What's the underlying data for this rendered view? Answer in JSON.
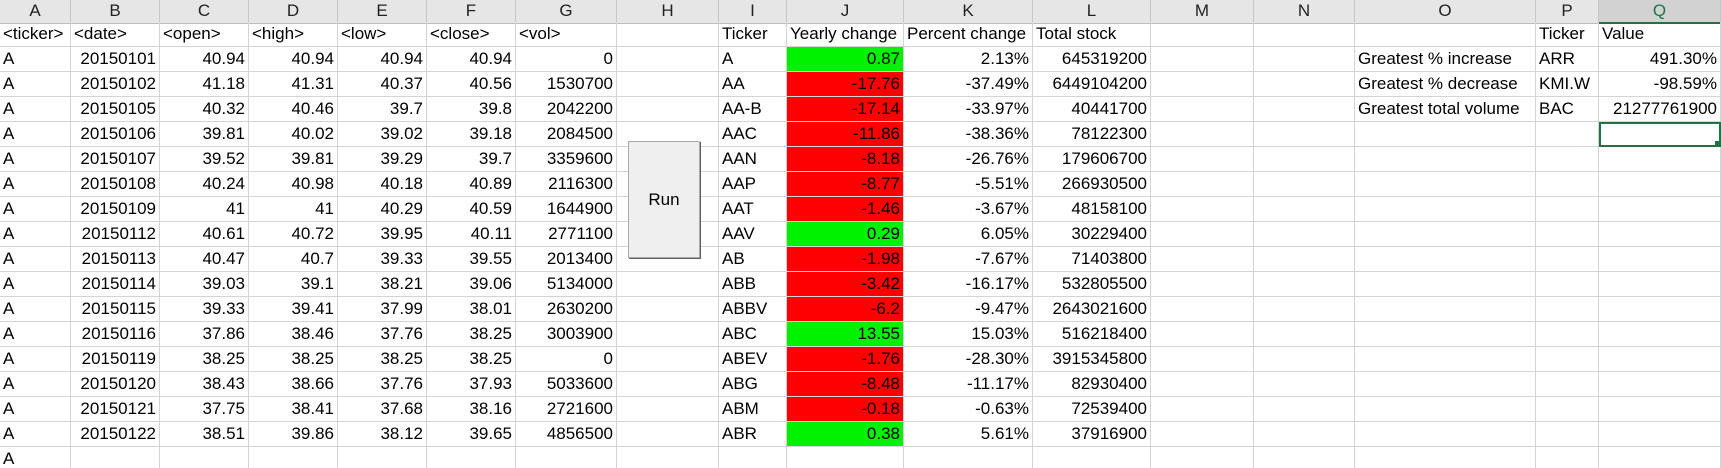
{
  "sheet": {
    "columns": [
      "A",
      "B",
      "C",
      "D",
      "E",
      "F",
      "G",
      "H",
      "I",
      "J",
      "K",
      "L",
      "M",
      "N",
      "O",
      "P",
      "Q"
    ],
    "selected_column": "Q",
    "rows": [
      [
        "<ticker>",
        "<date>",
        "<open>",
        "<high>",
        "<low>",
        "<close>",
        "<vol>",
        "",
        "Ticker",
        "Yearly change",
        "Percent change",
        "Total stock",
        "",
        "",
        "",
        "Ticker",
        "Value"
      ],
      [
        "A",
        "20150101",
        "40.94",
        "40.94",
        "40.94",
        "40.94",
        "0",
        "",
        "A",
        "0.87",
        "2.13%",
        "645319200",
        "",
        "",
        "Greatest % increase",
        "ARR",
        "491.30%"
      ],
      [
        "A",
        "20150102",
        "41.18",
        "41.31",
        "40.37",
        "40.56",
        "1530700",
        "",
        "AA",
        "-17.76",
        "-37.49%",
        "6449104200",
        "",
        "",
        "Greatest % decrease",
        "KMI.W",
        "-98.59%"
      ],
      [
        "A",
        "20150105",
        "40.32",
        "40.46",
        "39.7",
        "39.8",
        "2042200",
        "",
        "AA-B",
        "-17.14",
        "-33.97%",
        "40441700",
        "",
        "",
        "Greatest total volume",
        "BAC",
        "21277761900"
      ],
      [
        "A",
        "20150106",
        "39.81",
        "40.02",
        "39.02",
        "39.18",
        "2084500",
        "",
        "AAC",
        "-11.86",
        "-38.36%",
        "78122300",
        "",
        "",
        "",
        "",
        ""
      ],
      [
        "A",
        "20150107",
        "39.52",
        "39.81",
        "39.29",
        "39.7",
        "3359600",
        "",
        "AAN",
        "-8.18",
        "-26.76%",
        "179606700",
        "",
        "",
        "",
        "",
        ""
      ],
      [
        "A",
        "20150108",
        "40.24",
        "40.98",
        "40.18",
        "40.89",
        "2116300",
        "",
        "AAP",
        "-8.77",
        "-5.51%",
        "266930500",
        "",
        "",
        "",
        "",
        ""
      ],
      [
        "A",
        "20150109",
        "41",
        "41",
        "40.29",
        "40.59",
        "1644900",
        "",
        "AAT",
        "-1.46",
        "-3.67%",
        "48158100",
        "",
        "",
        "",
        "",
        ""
      ],
      [
        "A",
        "20150112",
        "40.61",
        "40.72",
        "39.95",
        "40.11",
        "2771100",
        "",
        "AAV",
        "0.29",
        "6.05%",
        "30229400",
        "",
        "",
        "",
        "",
        ""
      ],
      [
        "A",
        "20150113",
        "40.47",
        "40.7",
        "39.33",
        "39.55",
        "2013400",
        "",
        "AB",
        "-1.98",
        "-7.67%",
        "71403800",
        "",
        "",
        "",
        "",
        ""
      ],
      [
        "A",
        "20150114",
        "39.03",
        "39.1",
        "38.21",
        "39.06",
        "5134000",
        "",
        "ABB",
        "-3.42",
        "-16.17%",
        "532805500",
        "",
        "",
        "",
        "",
        ""
      ],
      [
        "A",
        "20150115",
        "39.33",
        "39.41",
        "37.99",
        "38.01",
        "2630200",
        "",
        "ABBV",
        "-6.2",
        "-9.47%",
        "2643021600",
        "",
        "",
        "",
        "",
        ""
      ],
      [
        "A",
        "20150116",
        "37.86",
        "38.46",
        "37.76",
        "38.25",
        "3003900",
        "",
        "ABC",
        "13.55",
        "15.03%",
        "516218400",
        "",
        "",
        "",
        "",
        ""
      ],
      [
        "A",
        "20150119",
        "38.25",
        "38.25",
        "38.25",
        "38.25",
        "0",
        "",
        "ABEV",
        "-1.76",
        "-28.30%",
        "3915345800",
        "",
        "",
        "",
        "",
        ""
      ],
      [
        "A",
        "20150120",
        "38.43",
        "38.66",
        "37.76",
        "37.93",
        "5033600",
        "",
        "ABG",
        "-8.48",
        "-11.17%",
        "82930400",
        "",
        "",
        "",
        "",
        ""
      ],
      [
        "A",
        "20150121",
        "37.75",
        "38.41",
        "37.68",
        "38.16",
        "2721600",
        "",
        "ABM",
        "-0.18",
        "-0.63%",
        "72539400",
        "",
        "",
        "",
        "",
        ""
      ],
      [
        "A",
        "20150122",
        "38.51",
        "39.86",
        "38.12",
        "39.65",
        "4856500",
        "",
        "ABR",
        "0.38",
        "5.61%",
        "37916900",
        "",
        "",
        "",
        "",
        ""
      ],
      [
        "A",
        "",
        "",
        "",
        "",
        "",
        "",
        "",
        "",
        "",
        "",
        "",
        "",
        "",
        "",
        "",
        ""
      ]
    ],
    "right_align_columns": [
      1,
      2,
      3,
      4,
      5,
      6,
      9,
      10,
      11,
      16
    ],
    "yearly_change_column": 9,
    "selected_cell": {
      "row": 4,
      "col": 16
    },
    "colors": {
      "positive": "#00f200",
      "negative": "#ff0000",
      "selection": "#217346"
    }
  },
  "run_button": {
    "label": "Run"
  }
}
